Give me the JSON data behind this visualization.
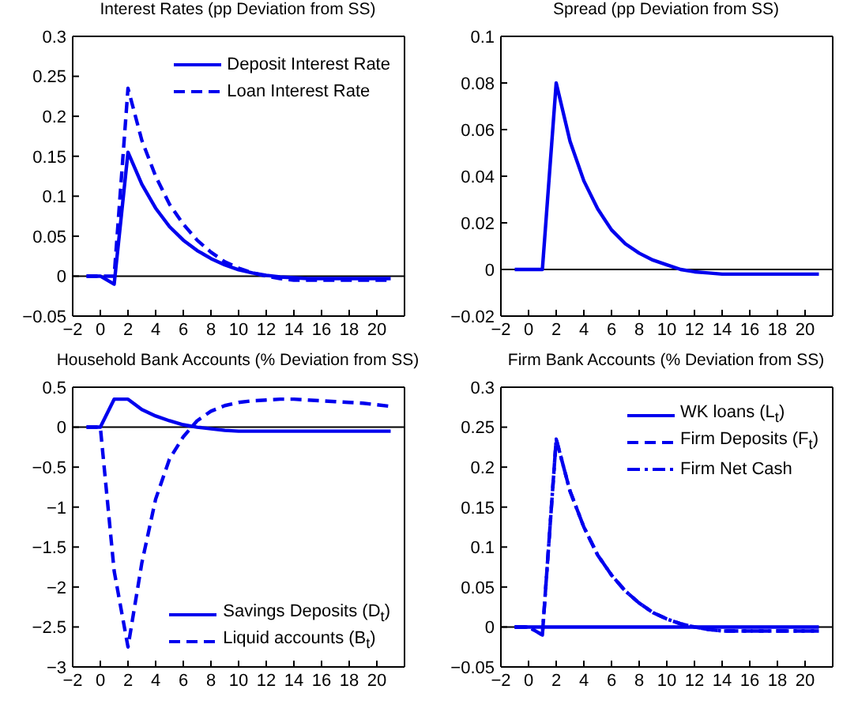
{
  "chart_data": [
    {
      "type": "line",
      "title": "Interest Rates (pp Deviation from SS)",
      "x": [
        -1,
        0,
        1,
        2,
        3,
        4,
        5,
        6,
        7,
        8,
        9,
        10,
        11,
        12,
        13,
        14,
        15,
        16,
        17,
        18,
        19,
        20,
        21
      ],
      "series": [
        {
          "name": "Deposit Interest Rate",
          "color": "#0000ee",
          "line_style": "solid",
          "values": [
            0,
            0,
            -0.01,
            0.155,
            0.115,
            0.085,
            0.062,
            0.045,
            0.032,
            0.022,
            0.014,
            0.008,
            0.004,
            0.001,
            -0.001,
            -0.002,
            -0.003,
            -0.003,
            -0.003,
            -0.003,
            -0.003,
            -0.003,
            -0.003
          ]
        },
        {
          "name": "Loan Interest Rate",
          "color": "#0000ee",
          "line_style": "dashed",
          "values": [
            0,
            0,
            0,
            0.235,
            0.17,
            0.125,
            0.09,
            0.065,
            0.045,
            0.03,
            0.018,
            0.01,
            0.004,
            0,
            -0.003,
            -0.005,
            -0.005,
            -0.005,
            -0.005,
            -0.005,
            -0.005,
            -0.005,
            -0.005
          ]
        }
      ],
      "xlim": [
        -2,
        22
      ],
      "xticks": [
        -2,
        0,
        2,
        4,
        6,
        8,
        10,
        12,
        14,
        16,
        18,
        20
      ],
      "ylim": [
        -0.05,
        0.3
      ],
      "yticks": [
        -0.05,
        0,
        0.05,
        0.1,
        0.15,
        0.2,
        0.25,
        0.3
      ],
      "ref_lines": [
        {
          "axis": "y",
          "value": 0,
          "color": "#000000"
        }
      ],
      "legend": "top right",
      "grid": false,
      "marker": "none"
    },
    {
      "type": "line",
      "title": "Spread (pp Deviation from SS)",
      "x": [
        -1,
        0,
        1,
        2,
        3,
        4,
        5,
        6,
        7,
        8,
        9,
        10,
        11,
        12,
        13,
        14,
        15,
        16,
        17,
        18,
        19,
        20,
        21
      ],
      "series": [
        {
          "color": "#0000ee",
          "line_style": "solid",
          "values": [
            0,
            0,
            0,
            0.08,
            0.055,
            0.038,
            0.026,
            0.017,
            0.011,
            0.007,
            0.004,
            0.002,
            0,
            -0.001,
            -0.0015,
            -0.002,
            -0.002,
            -0.002,
            -0.002,
            -0.002,
            -0.002,
            -0.002,
            -0.002
          ]
        }
      ],
      "xlim": [
        -2,
        22
      ],
      "xticks": [
        -2,
        0,
        2,
        4,
        6,
        8,
        10,
        12,
        14,
        16,
        18,
        20
      ],
      "ylim": [
        -0.02,
        0.1
      ],
      "yticks": [
        -0.02,
        0,
        0.02,
        0.04,
        0.06,
        0.08,
        0.1
      ],
      "ref_lines": [
        {
          "axis": "y",
          "value": 0,
          "color": "#000000"
        }
      ],
      "legend": false,
      "grid": false,
      "marker": "none"
    },
    {
      "type": "line",
      "title": "Household Bank Accounts (% Deviation from SS)",
      "x": [
        -1,
        0,
        1,
        2,
        3,
        4,
        5,
        6,
        7,
        8,
        9,
        10,
        11,
        12,
        13,
        14,
        15,
        16,
        17,
        18,
        19,
        20,
        21
      ],
      "series": [
        {
          "name": "Savings Deposits (D$_{t}$)",
          "color": "#0000ee",
          "line_style": "solid",
          "values": [
            0,
            0,
            0.35,
            0.35,
            0.22,
            0.14,
            0.08,
            0.03,
            0,
            -0.02,
            -0.04,
            -0.05,
            -0.05,
            -0.05,
            -0.05,
            -0.05,
            -0.05,
            -0.05,
            -0.05,
            -0.05,
            -0.05,
            -0.05,
            -0.05
          ]
        },
        {
          "name": "Liquid accounts (B$_{t}$)",
          "color": "#0000ee",
          "line_style": "dashed",
          "values": [
            0,
            0,
            -1.8,
            -2.75,
            -1.7,
            -0.9,
            -0.4,
            -0.12,
            0.08,
            0.2,
            0.27,
            0.31,
            0.33,
            0.34,
            0.35,
            0.35,
            0.34,
            0.33,
            0.32,
            0.31,
            0.3,
            0.28,
            0.26
          ]
        }
      ],
      "xlim": [
        -2,
        22
      ],
      "xticks": [
        -2,
        0,
        2,
        4,
        6,
        8,
        10,
        12,
        14,
        16,
        18,
        20
      ],
      "ylim": [
        -3,
        0.5
      ],
      "yticks": [
        -3,
        -2.5,
        -2,
        -1.5,
        -1,
        -0.5,
        0,
        0.5
      ],
      "ref_lines": [
        {
          "axis": "y",
          "value": 0,
          "color": "#000000"
        }
      ],
      "legend": "bottom right",
      "grid": false,
      "marker": "none"
    },
    {
      "type": "line",
      "title": "Firm Bank Accounts (% Deviation from SS)",
      "x": [
        -1,
        0,
        1,
        2,
        3,
        4,
        5,
        6,
        7,
        8,
        9,
        10,
        11,
        12,
        13,
        14,
        15,
        16,
        17,
        18,
        19,
        20,
        21
      ],
      "series": [
        {
          "name": "WK loans (L$_{t}$)",
          "color": "#0000ee",
          "line_style": "solid",
          "values": [
            0,
            0,
            0,
            0,
            0,
            0,
            0,
            0,
            0,
            0,
            0,
            0,
            0,
            0,
            0,
            0,
            0,
            0,
            0,
            0,
            0,
            0,
            0
          ]
        },
        {
          "name": "Firm Deposits (F$_{t}$)",
          "color": "#0000ee",
          "line_style": "dashed",
          "values": [
            0,
            0,
            -0.01,
            0.235,
            0.17,
            0.125,
            0.09,
            0.065,
            0.045,
            0.03,
            0.018,
            0.01,
            0.004,
            0,
            -0.003,
            -0.005,
            -0.005,
            -0.005,
            -0.005,
            -0.005,
            -0.005,
            -0.005,
            -0.005
          ]
        },
        {
          "name": "Firm Net Cash",
          "color": "#0000ee",
          "line_style": "dashdot",
          "values": [
            0,
            0,
            -0.01,
            0.235,
            0.17,
            0.125,
            0.09,
            0.065,
            0.045,
            0.03,
            0.018,
            0.01,
            0.004,
            0,
            -0.003,
            -0.005,
            -0.005,
            -0.005,
            -0.005,
            -0.005,
            -0.005,
            -0.005,
            -0.005
          ]
        }
      ],
      "xlim": [
        -2,
        22
      ],
      "xticks": [
        -2,
        0,
        2,
        4,
        6,
        8,
        10,
        12,
        14,
        16,
        18,
        20
      ],
      "ylim": [
        -0.05,
        0.3
      ],
      "yticks": [
        -0.05,
        0,
        0.05,
        0.1,
        0.15,
        0.2,
        0.25,
        0.3
      ],
      "ref_lines": [
        {
          "axis": "y",
          "value": 0,
          "color": "#000000"
        }
      ],
      "legend": "top right",
      "grid": false,
      "marker": "none"
    }
  ]
}
